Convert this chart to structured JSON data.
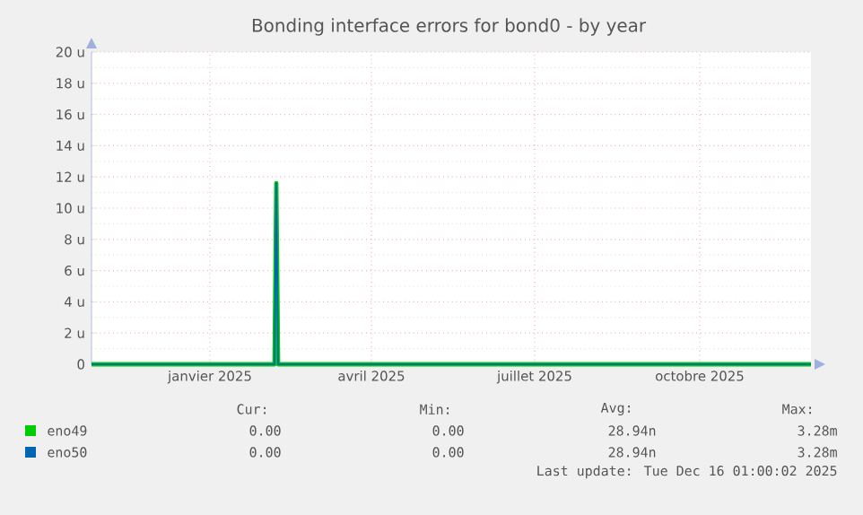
{
  "chart_data": {
    "type": "line",
    "title": "Bonding interface errors for bond0 - by year",
    "xlim": [
      "2024-10-27",
      "2025-12-02"
    ],
    "xticks": [
      {
        "value": "2025-01-01",
        "label": "janvier 2025"
      },
      {
        "value": "2025-04-01",
        "label": "avril 2025"
      },
      {
        "value": "2025-07-01",
        "label": "juillet 2025"
      },
      {
        "value": "2025-10-01",
        "label": "octobre 2025"
      }
    ],
    "ylim": [
      0,
      20
    ],
    "yticks": [
      0,
      {
        "value": 2,
        "label": "2 u"
      },
      {
        "value": 4,
        "label": "4 u"
      },
      {
        "value": 6,
        "label": "6 u"
      },
      {
        "value": 8,
        "label": "8 u"
      },
      {
        "value": 10,
        "label": "10 u"
      },
      {
        "value": 12,
        "label": "12 u"
      },
      {
        "value": 14,
        "label": "14 u"
      },
      {
        "value": 16,
        "label": "16 u"
      },
      {
        "value": 18,
        "label": "18 u"
      },
      {
        "value": 20,
        "label": "20 u"
      }
    ],
    "grid": true,
    "legend": "bottom",
    "line_style": "solid",
    "marker": "none",
    "series": [
      {
        "name": "eno49",
        "color": "#00cc00",
        "x": [
          "2024-10-27",
          "2025-02-06",
          "2025-02-07",
          "2025-02-08",
          "2025-12-02"
        ],
        "values": [
          0,
          0,
          11.6,
          0,
          0
        ]
      },
      {
        "name": "eno50",
        "color": "#0066b3",
        "x": [
          "2024-10-27",
          "2025-02-06",
          "2025-02-07",
          "2025-02-08",
          "2025-12-02"
        ],
        "values": [
          0,
          0,
          11.6,
          0,
          0
        ]
      }
    ],
    "annotations": [
      "Cur:",
      "Min:",
      "Avg:",
      "Max:",
      "0.00",
      "0.00",
      "28.94n",
      "3.28m",
      "0.00",
      "0.00",
      "28.94n",
      "3.28m",
      "Last update: Tue Dec 16 01:00:02 2025"
    ]
  }
}
